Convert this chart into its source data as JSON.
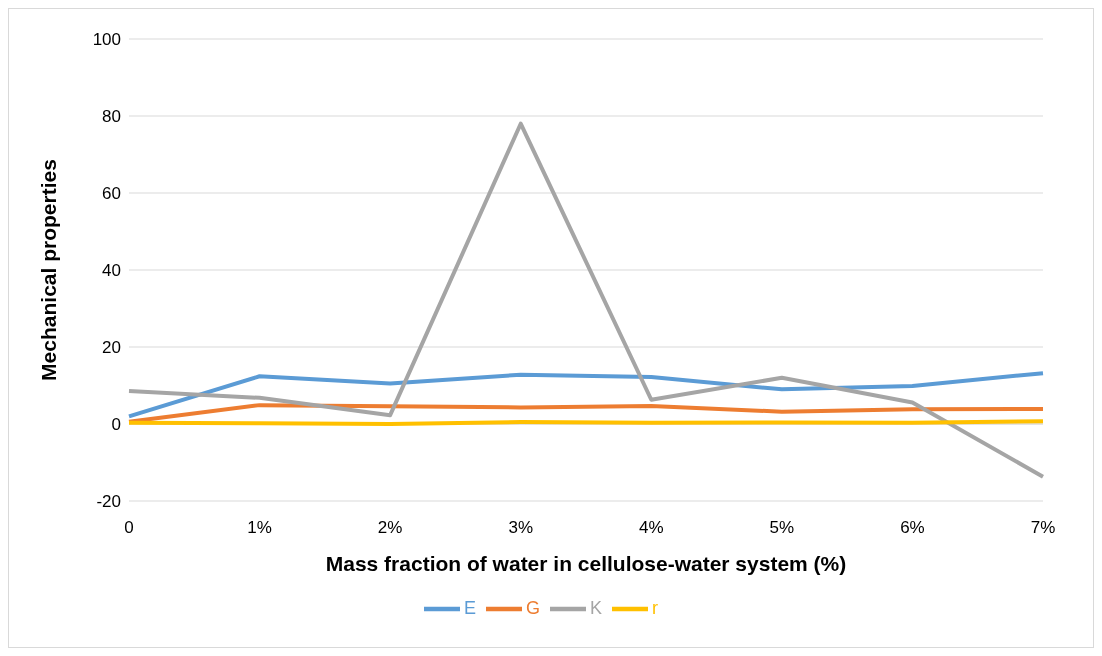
{
  "chart_data": {
    "type": "line",
    "xlabel": "Mass fraction of water in cellulose-water system (%)",
    "ylabel": "Mechanical properties",
    "categories": [
      "0",
      "1%",
      "2%",
      "3%",
      "4%",
      "5%",
      "6%",
      "7%"
    ],
    "series": [
      {
        "name": "E",
        "color": "#5b9bd5",
        "values": [
          2,
          12.4,
          10.5,
          12.8,
          12.2,
          9,
          9.9,
          13.2
        ]
      },
      {
        "name": "G",
        "color": "#ed7d31",
        "values": [
          0.6,
          4.9,
          4.6,
          4.3,
          4.7,
          3.2,
          3.8,
          3.9
        ]
      },
      {
        "name": "K",
        "color": "#a5a5a5",
        "values": [
          8.6,
          6.8,
          2.3,
          78,
          6.3,
          12,
          5.6,
          -13.7
        ]
      },
      {
        "name": "r",
        "color": "#ffc000",
        "values": [
          0.3,
          0.2,
          0,
          0.5,
          0.3,
          0.4,
          0.3,
          0.7
        ]
      }
    ],
    "ylim": [
      -20,
      100
    ],
    "yticks": [
      -20,
      0,
      20,
      40,
      60,
      80,
      100
    ],
    "grid": "y",
    "legend": "bottom",
    "marker": "none",
    "line_style": "solid"
  }
}
